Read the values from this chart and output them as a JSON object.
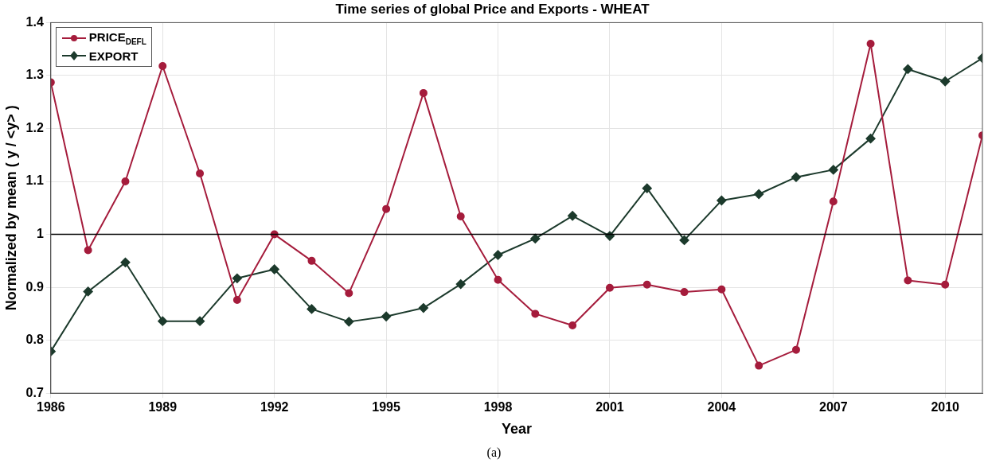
{
  "chart_data": {
    "type": "line",
    "title": "Time series of global Price and Exports - WHEAT",
    "xlabel": "Year",
    "ylabel": "Normalized by mean ( y / <y> )",
    "x": [
      1986,
      1987,
      1988,
      1989,
      1990,
      1991,
      1992,
      1993,
      1994,
      1995,
      1996,
      1997,
      1998,
      1999,
      2000,
      2001,
      2002,
      2003,
      2004,
      2005,
      2006,
      2007,
      2008,
      2009,
      2010,
      2011
    ],
    "series": [
      {
        "name": "PRICE$_{DEFL}$",
        "color": "#a51c3c",
        "marker": "circle",
        "values": [
          1.287,
          0.97,
          1.1,
          1.318,
          1.115,
          0.876,
          1.0,
          0.95,
          0.889,
          1.048,
          1.267,
          1.034,
          0.914,
          0.85,
          0.828,
          0.899,
          0.905,
          0.891,
          0.896,
          0.752,
          0.782,
          1.062,
          1.36,
          0.913,
          0.905,
          1.187
        ]
      },
      {
        "name": "EXPORT",
        "color": "#1c3a2c",
        "marker": "diamond",
        "values": [
          0.779,
          0.892,
          0.947,
          0.836,
          0.836,
          0.917,
          0.934,
          0.859,
          0.835,
          0.845,
          0.861,
          0.906,
          0.961,
          0.992,
          1.035,
          0.997,
          1.087,
          0.989,
          1.064,
          1.076,
          1.108,
          1.122,
          1.181,
          1.312,
          1.289,
          1.333
        ]
      }
    ],
    "xlim": [
      1986,
      2011
    ],
    "xticks": [
      1986,
      1989,
      1992,
      1995,
      1998,
      2001,
      2004,
      2007,
      2010
    ],
    "ylim": [
      0.7,
      1.4
    ],
    "yticks": [
      0.7,
      0.8,
      0.9,
      1,
      1.1,
      1.2,
      1.3,
      1.4
    ],
    "ref_lines": [
      {
        "axis": "y",
        "value": 1,
        "color": "#000000"
      }
    ],
    "grid": true,
    "legend": "top left",
    "line_style": "solid",
    "annotations": [
      "(a)"
    ]
  }
}
